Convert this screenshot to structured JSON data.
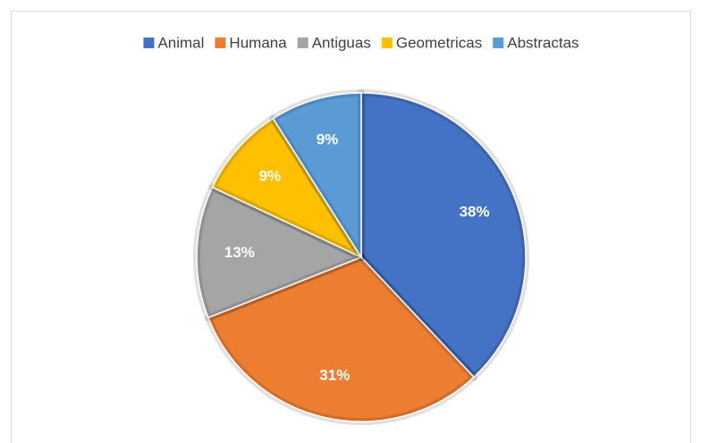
{
  "chart_data": {
    "type": "pie",
    "categories": [
      "Animal",
      "Humana",
      "Antiguas",
      "Geometricas",
      "Abstractas"
    ],
    "values": [
      38,
      31,
      13,
      9,
      9
    ],
    "value_labels": [
      "38%",
      "31%",
      "13%",
      "9%",
      "9%"
    ],
    "colors": [
      "#4472c4",
      "#ed7d31",
      "#a5a5a5",
      "#ffc000",
      "#5b9bd5"
    ],
    "legend": "top"
  }
}
